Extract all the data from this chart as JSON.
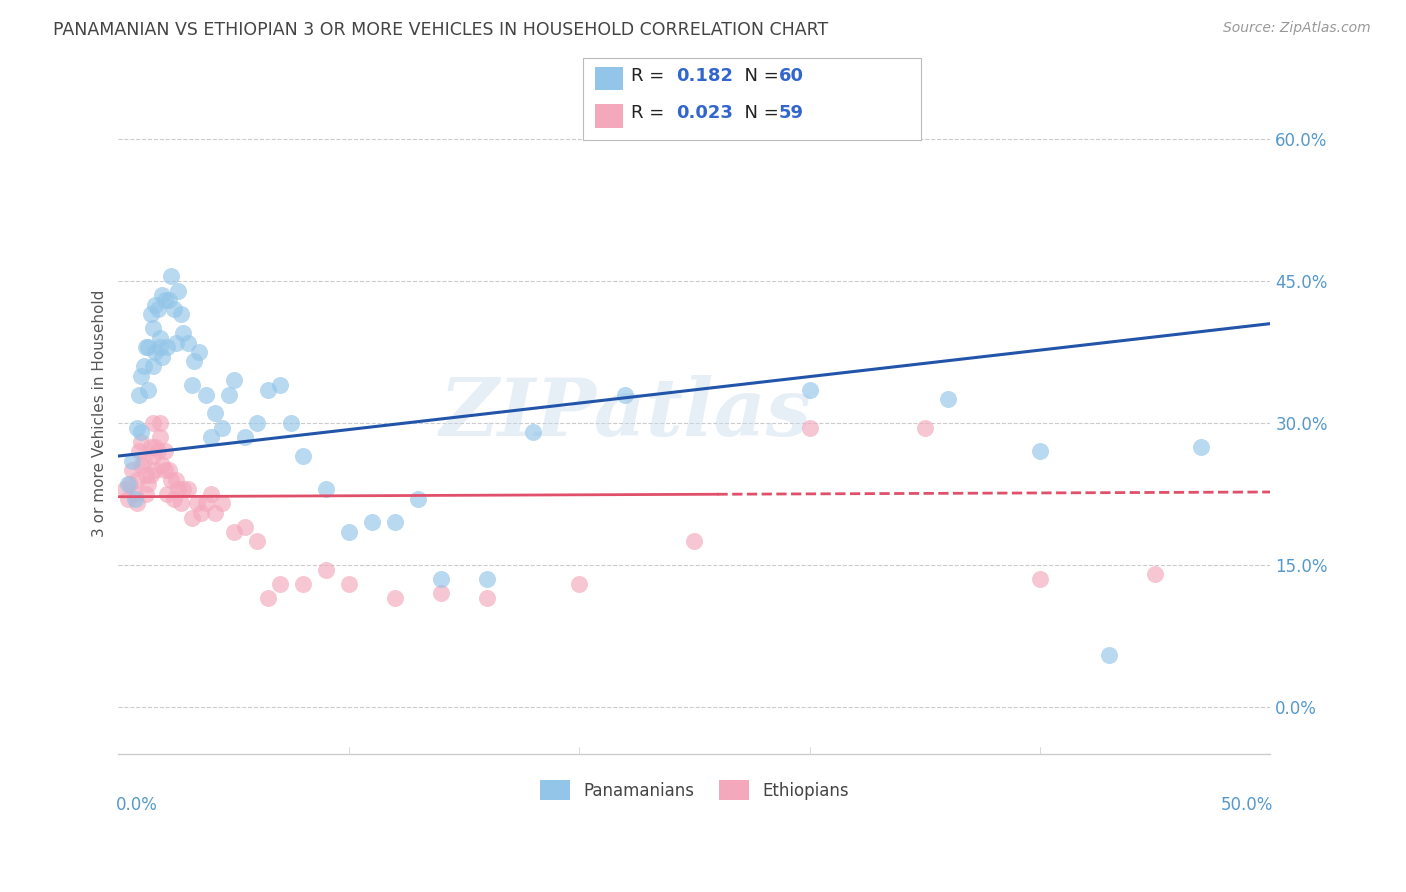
{
  "title": "PANAMANIAN VS ETHIOPIAN 3 OR MORE VEHICLES IN HOUSEHOLD CORRELATION CHART",
  "source": "Source: ZipAtlas.com",
  "ylabel": "3 or more Vehicles in Household",
  "watermark_line1": "ZIP",
  "watermark_line2": "atlas",
  "xlim": [
    0.0,
    0.5
  ],
  "ylim": [
    -0.05,
    0.67
  ],
  "ytick_vals": [
    0.0,
    0.15,
    0.3,
    0.45,
    0.6
  ],
  "ytick_labels": [
    "0.0%",
    "15.0%",
    "30.0%",
    "45.0%",
    "60.0%"
  ],
  "blue_R": "0.182",
  "blue_N": "60",
  "pink_R": "0.023",
  "pink_N": "59",
  "blue_color": "#92C5E8",
  "pink_color": "#F4A8BC",
  "blue_line_color": "#2255AA",
  "pink_line_color": "#E0506A",
  "legend_val_color": "#3366CC",
  "axis_tick_color": "#5599CC",
  "title_color": "#444444",
  "source_color": "#999999",
  "grid_color": "#cccccc",
  "blue_x": [
    0.004,
    0.006,
    0.007,
    0.008,
    0.009,
    0.01,
    0.01,
    0.011,
    0.012,
    0.013,
    0.013,
    0.014,
    0.015,
    0.015,
    0.016,
    0.016,
    0.017,
    0.018,
    0.018,
    0.019,
    0.019,
    0.02,
    0.021,
    0.022,
    0.023,
    0.024,
    0.025,
    0.026,
    0.027,
    0.028,
    0.03,
    0.032,
    0.033,
    0.035,
    0.038,
    0.04,
    0.042,
    0.045,
    0.048,
    0.05,
    0.055,
    0.06,
    0.065,
    0.07,
    0.075,
    0.08,
    0.09,
    0.1,
    0.11,
    0.12,
    0.13,
    0.14,
    0.16,
    0.18,
    0.22,
    0.3,
    0.36,
    0.4,
    0.43,
    0.47
  ],
  "blue_y": [
    0.235,
    0.26,
    0.22,
    0.295,
    0.33,
    0.35,
    0.29,
    0.36,
    0.38,
    0.335,
    0.38,
    0.415,
    0.36,
    0.4,
    0.375,
    0.425,
    0.42,
    0.39,
    0.38,
    0.435,
    0.37,
    0.43,
    0.38,
    0.43,
    0.455,
    0.42,
    0.385,
    0.44,
    0.415,
    0.395,
    0.385,
    0.34,
    0.365,
    0.375,
    0.33,
    0.285,
    0.31,
    0.295,
    0.33,
    0.345,
    0.285,
    0.3,
    0.335,
    0.34,
    0.3,
    0.265,
    0.23,
    0.185,
    0.195,
    0.195,
    0.22,
    0.135,
    0.135,
    0.29,
    0.33,
    0.335,
    0.325,
    0.27,
    0.055,
    0.275
  ],
  "pink_x": [
    0.003,
    0.004,
    0.005,
    0.006,
    0.007,
    0.008,
    0.008,
    0.009,
    0.01,
    0.01,
    0.011,
    0.012,
    0.012,
    0.013,
    0.014,
    0.014,
    0.015,
    0.015,
    0.016,
    0.016,
    0.017,
    0.018,
    0.018,
    0.019,
    0.02,
    0.02,
    0.021,
    0.022,
    0.023,
    0.024,
    0.025,
    0.026,
    0.027,
    0.028,
    0.03,
    0.032,
    0.034,
    0.036,
    0.038,
    0.04,
    0.042,
    0.045,
    0.05,
    0.055,
    0.06,
    0.065,
    0.07,
    0.08,
    0.09,
    0.1,
    0.12,
    0.14,
    0.16,
    0.2,
    0.25,
    0.3,
    0.35,
    0.4,
    0.45
  ],
  "pink_y": [
    0.23,
    0.22,
    0.235,
    0.25,
    0.225,
    0.24,
    0.215,
    0.27,
    0.255,
    0.28,
    0.26,
    0.245,
    0.225,
    0.235,
    0.275,
    0.245,
    0.3,
    0.265,
    0.275,
    0.25,
    0.27,
    0.3,
    0.285,
    0.255,
    0.25,
    0.27,
    0.225,
    0.25,
    0.24,
    0.22,
    0.24,
    0.23,
    0.215,
    0.23,
    0.23,
    0.2,
    0.215,
    0.205,
    0.215,
    0.225,
    0.205,
    0.215,
    0.185,
    0.19,
    0.175,
    0.115,
    0.13,
    0.13,
    0.145,
    0.13,
    0.115,
    0.12,
    0.115,
    0.13,
    0.175,
    0.295,
    0.295,
    0.135,
    0.14
  ],
  "blue_line_intercept": 0.265,
  "blue_line_slope": 0.28,
  "pink_line_intercept": 0.222,
  "pink_line_slope": 0.01
}
